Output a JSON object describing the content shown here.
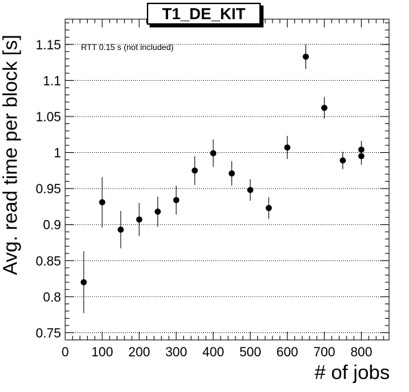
{
  "chart_data": {
    "type": "scatter",
    "title": "T1_DE_KIT",
    "xlabel": "# of jobs",
    "ylabel": "Avg. read time per block [s]",
    "annotation": "RTT 0.15 s (not included)",
    "xlim": [
      0,
      875
    ],
    "ylim": [
      0.74,
      1.185
    ],
    "x_ticks": [
      0,
      100,
      200,
      300,
      400,
      500,
      600,
      700,
      800
    ],
    "y_ticks": [
      0.75,
      0.8,
      0.85,
      0.9,
      0.95,
      1,
      1.05,
      1.1,
      1.15
    ],
    "y_tick_labels": [
      "0.75",
      "0.8",
      "0.85",
      "0.9",
      "0.95",
      "1",
      "1.05",
      "1.1",
      "1.15"
    ],
    "grid": "horizontal dotted",
    "points": [
      {
        "x": 50,
        "y": 0.82,
        "err": 0.043
      },
      {
        "x": 100,
        "y": 0.931,
        "err": 0.035
      },
      {
        "x": 150,
        "y": 0.893,
        "err": 0.026
      },
      {
        "x": 200,
        "y": 0.907,
        "err": 0.023
      },
      {
        "x": 250,
        "y": 0.918,
        "err": 0.021
      },
      {
        "x": 300,
        "y": 0.934,
        "err": 0.02
      },
      {
        "x": 350,
        "y": 0.975,
        "err": 0.02
      },
      {
        "x": 400,
        "y": 0.999,
        "err": 0.019
      },
      {
        "x": 450,
        "y": 0.971,
        "err": 0.017
      },
      {
        "x": 500,
        "y": 0.948,
        "err": 0.015
      },
      {
        "x": 550,
        "y": 0.923,
        "err": 0.015
      },
      {
        "x": 600,
        "y": 1.007,
        "err": 0.016
      },
      {
        "x": 650,
        "y": 1.133,
        "err": 0.017
      },
      {
        "x": 700,
        "y": 1.062,
        "err": 0.015
      },
      {
        "x": 750,
        "y": 0.989,
        "err": 0.012
      },
      {
        "x": 800,
        "y": 1.004,
        "err": 0.012
      },
      {
        "x": 800,
        "y": 0.995,
        "err": 0.012
      }
    ]
  }
}
